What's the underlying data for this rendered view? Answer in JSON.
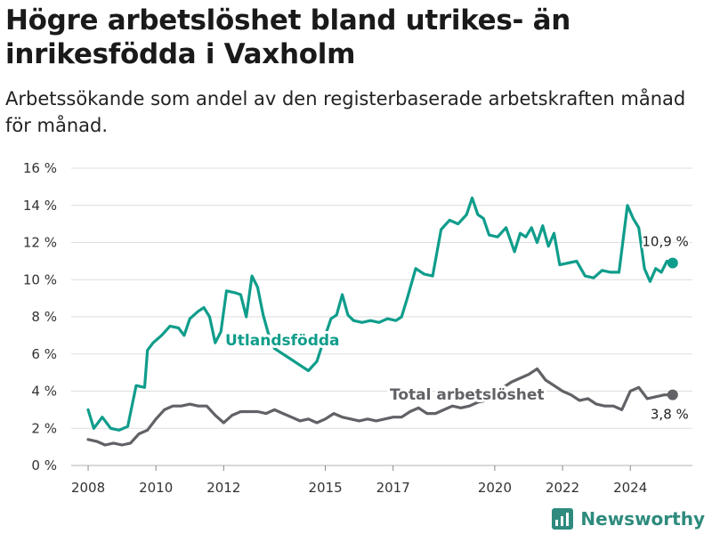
{
  "header": {
    "title": "Högre arbetslöshet bland utrikes- än inrikesfödda i Vaxholm",
    "subtitle": "Arbetssökande som andel av den registerbaserade arbetskraften månad för månad."
  },
  "brand": {
    "name": "Newsworthy",
    "color": "#2e8b7d"
  },
  "chart_data": {
    "type": "line",
    "title": "Högre arbetslöshet bland utrikes- än inrikesfödda i Vaxholm",
    "subtitle": "Arbetssökande som andel av den registerbaserade arbetskraften månad för månad.",
    "xlabel": "",
    "ylabel": "",
    "x_ticks": [
      "2008",
      "2010",
      "2012",
      "2015",
      "2017",
      "2020",
      "2022",
      "2024"
    ],
    "y_ticks": [
      "0 %",
      "2 %",
      "4 %",
      "6 %",
      "8 %",
      "10 %",
      "12 %",
      "14 %",
      "16 %"
    ],
    "ylim": [
      0,
      16
    ],
    "xlim": [
      "2007-07",
      "2025-11"
    ],
    "grid": "horizontal",
    "legend": "inline labels",
    "series": [
      {
        "name": "Utlandsfödda",
        "color": "#0f9d8b",
        "end_label": "10,9 %",
        "points": [
          [
            "2008-01",
            3.0
          ],
          [
            "2008-03",
            2.0
          ],
          [
            "2008-06",
            2.6
          ],
          [
            "2008-09",
            2.0
          ],
          [
            "2008-12",
            1.9
          ],
          [
            "2009-03",
            2.1
          ],
          [
            "2009-06",
            4.3
          ],
          [
            "2009-09",
            4.2
          ],
          [
            "2009-10",
            6.2
          ],
          [
            "2009-12",
            6.6
          ],
          [
            "2010-03",
            7.0
          ],
          [
            "2010-06",
            7.5
          ],
          [
            "2010-09",
            7.4
          ],
          [
            "2010-11",
            7.0
          ],
          [
            "2011-01",
            7.9
          ],
          [
            "2011-04",
            8.3
          ],
          [
            "2011-06",
            8.5
          ],
          [
            "2011-08",
            8.0
          ],
          [
            "2011-10",
            6.6
          ],
          [
            "2011-12",
            7.2
          ],
          [
            "2012-02",
            9.4
          ],
          [
            "2012-05",
            9.3
          ],
          [
            "2012-07",
            9.2
          ],
          [
            "2012-09",
            8.0
          ],
          [
            "2012-11",
            10.2
          ],
          [
            "2013-01",
            9.6
          ],
          [
            "2013-03",
            8.1
          ],
          [
            "2013-05",
            7.0
          ],
          [
            "2013-07",
            6.3
          ],
          [
            "2013-10",
            6.0
          ],
          [
            "2014-01",
            5.7
          ],
          [
            "2014-04",
            5.4
          ],
          [
            "2014-07",
            5.1
          ],
          [
            "2014-10",
            5.6
          ],
          [
            "2015-01",
            7.0
          ],
          [
            "2015-03",
            7.9
          ],
          [
            "2015-05",
            8.1
          ],
          [
            "2015-07",
            9.2
          ],
          [
            "2015-09",
            8.1
          ],
          [
            "2015-11",
            7.8
          ],
          [
            "2016-02",
            7.7
          ],
          [
            "2016-05",
            7.8
          ],
          [
            "2016-08",
            7.7
          ],
          [
            "2016-11",
            7.9
          ],
          [
            "2017-02",
            7.8
          ],
          [
            "2017-04",
            8.0
          ],
          [
            "2017-06",
            9.0
          ],
          [
            "2017-09",
            10.6
          ],
          [
            "2017-12",
            10.3
          ],
          [
            "2018-03",
            10.2
          ],
          [
            "2018-06",
            12.7
          ],
          [
            "2018-09",
            13.2
          ],
          [
            "2018-12",
            13.0
          ],
          [
            "2019-03",
            13.5
          ],
          [
            "2019-05",
            14.4
          ],
          [
            "2019-07",
            13.5
          ],
          [
            "2019-09",
            13.3
          ],
          [
            "2019-11",
            12.4
          ],
          [
            "2020-02",
            12.3
          ],
          [
            "2020-05",
            12.8
          ],
          [
            "2020-08",
            11.5
          ],
          [
            "2020-10",
            12.5
          ],
          [
            "2020-12",
            12.3
          ],
          [
            "2021-02",
            12.8
          ],
          [
            "2021-04",
            12.0
          ],
          [
            "2021-06",
            12.9
          ],
          [
            "2021-08",
            11.8
          ],
          [
            "2021-10",
            12.5
          ],
          [
            "2021-12",
            10.8
          ],
          [
            "2022-03",
            10.9
          ],
          [
            "2022-06",
            11.0
          ],
          [
            "2022-09",
            10.2
          ],
          [
            "2022-12",
            10.1
          ],
          [
            "2023-03",
            10.5
          ],
          [
            "2023-06",
            10.4
          ],
          [
            "2023-09",
            10.4
          ],
          [
            "2023-12",
            14.0
          ],
          [
            "2024-02",
            13.3
          ],
          [
            "2024-04",
            12.8
          ],
          [
            "2024-06",
            10.6
          ],
          [
            "2024-08",
            9.9
          ],
          [
            "2024-10",
            10.6
          ],
          [
            "2024-12",
            10.4
          ],
          [
            "2025-02",
            11.0
          ],
          [
            "2025-04",
            10.9
          ]
        ]
      },
      {
        "name": "Total arbetslöshet",
        "color": "#616166",
        "end_label": "3,8 %",
        "points": [
          [
            "2008-01",
            1.4
          ],
          [
            "2008-04",
            1.3
          ],
          [
            "2008-07",
            1.1
          ],
          [
            "2008-10",
            1.2
          ],
          [
            "2009-01",
            1.1
          ],
          [
            "2009-04",
            1.2
          ],
          [
            "2009-07",
            1.7
          ],
          [
            "2009-10",
            1.9
          ],
          [
            "2010-01",
            2.5
          ],
          [
            "2010-04",
            3.0
          ],
          [
            "2010-07",
            3.2
          ],
          [
            "2010-10",
            3.2
          ],
          [
            "2011-01",
            3.3
          ],
          [
            "2011-04",
            3.2
          ],
          [
            "2011-07",
            3.2
          ],
          [
            "2011-10",
            2.7
          ],
          [
            "2012-01",
            2.3
          ],
          [
            "2012-04",
            2.7
          ],
          [
            "2012-07",
            2.9
          ],
          [
            "2012-10",
            2.9
          ],
          [
            "2013-01",
            2.9
          ],
          [
            "2013-04",
            2.8
          ],
          [
            "2013-07",
            3.0
          ],
          [
            "2013-10",
            2.8
          ],
          [
            "2014-01",
            2.6
          ],
          [
            "2014-04",
            2.4
          ],
          [
            "2014-07",
            2.5
          ],
          [
            "2014-10",
            2.3
          ],
          [
            "2015-01",
            2.5
          ],
          [
            "2015-04",
            2.8
          ],
          [
            "2015-07",
            2.6
          ],
          [
            "2015-10",
            2.5
          ],
          [
            "2016-01",
            2.4
          ],
          [
            "2016-04",
            2.5
          ],
          [
            "2016-07",
            2.4
          ],
          [
            "2016-10",
            2.5
          ],
          [
            "2017-01",
            2.6
          ],
          [
            "2017-04",
            2.6
          ],
          [
            "2017-07",
            2.9
          ],
          [
            "2017-10",
            3.1
          ],
          [
            "2018-01",
            2.8
          ],
          [
            "2018-04",
            2.8
          ],
          [
            "2018-07",
            3.0
          ],
          [
            "2018-10",
            3.2
          ],
          [
            "2019-01",
            3.1
          ],
          [
            "2019-04",
            3.2
          ],
          [
            "2019-07",
            3.4
          ],
          [
            "2019-10",
            3.5
          ],
          [
            "2020-01",
            3.6
          ],
          [
            "2020-04",
            4.2
          ],
          [
            "2020-07",
            4.5
          ],
          [
            "2020-10",
            4.7
          ],
          [
            "2021-01",
            4.9
          ],
          [
            "2021-04",
            5.2
          ],
          [
            "2021-07",
            4.6
          ],
          [
            "2021-10",
            4.3
          ],
          [
            "2022-01",
            4.0
          ],
          [
            "2022-04",
            3.8
          ],
          [
            "2022-07",
            3.5
          ],
          [
            "2022-10",
            3.6
          ],
          [
            "2023-01",
            3.3
          ],
          [
            "2023-04",
            3.2
          ],
          [
            "2023-07",
            3.2
          ],
          [
            "2023-10",
            3.0
          ],
          [
            "2024-01",
            4.0
          ],
          [
            "2024-04",
            4.2
          ],
          [
            "2024-07",
            3.6
          ],
          [
            "2024-10",
            3.7
          ],
          [
            "2025-01",
            3.8
          ],
          [
            "2025-04",
            3.8
          ]
        ]
      }
    ],
    "annotations": [
      {
        "text": "Utlandsfödda",
        "series": "Utlandsfödda"
      },
      {
        "text": "Total arbetslöshet",
        "series": "Total arbetslöshet"
      }
    ]
  }
}
